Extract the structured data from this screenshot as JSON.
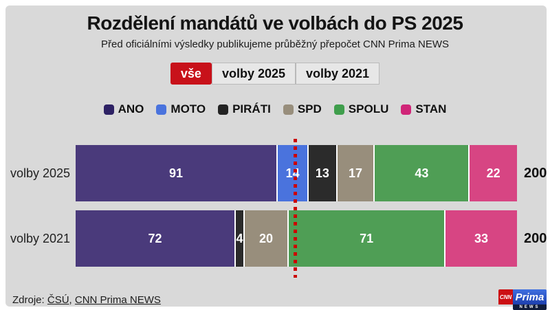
{
  "header": {
    "title": "Rozdělení mandátů ve volbách do PS 2025",
    "subtitle": "Před oficiálními výsledky publikujeme průběžný přepočet CNN Prima NEWS"
  },
  "tabs": {
    "items": [
      {
        "label": "vše",
        "active": true
      },
      {
        "label": "volby 2025",
        "active": false
      },
      {
        "label": "volby 2021",
        "active": false
      }
    ]
  },
  "legend": {
    "items": [
      {
        "label": "ANO",
        "color": "#2d2164"
      },
      {
        "label": "MOTO",
        "color": "#4a73dd"
      },
      {
        "label": "PIRÁTI",
        "color": "#232323"
      },
      {
        "label": "SPD",
        "color": "#988e7c"
      },
      {
        "label": "SPOLU",
        "color": "#3f9e4c"
      },
      {
        "label": "STAN",
        "color": "#d02578"
      }
    ]
  },
  "chart_data": {
    "type": "bar",
    "orientation": "horizontal",
    "stacked": true,
    "categories": [
      "volby 2025",
      "volby 2021"
    ],
    "series": [
      {
        "name": "ANO",
        "color": "#4a3a7b",
        "values": [
          91,
          72
        ]
      },
      {
        "name": "MOTO",
        "color": "#4a73dd",
        "values": [
          14,
          0
        ]
      },
      {
        "name": "PIRÁTI",
        "color": "#2b2b2b",
        "values": [
          13,
          4
        ]
      },
      {
        "name": "SPD",
        "color": "#988e7c",
        "values": [
          17,
          20
        ]
      },
      {
        "name": "SPOLU",
        "color": "#4f9e55",
        "values": [
          43,
          71
        ]
      },
      {
        "name": "STAN",
        "color": "#d74583",
        "values": [
          22,
          33
        ]
      }
    ],
    "totals": [
      200,
      200
    ],
    "xlim": [
      0,
      200
    ],
    "majority_line": 100,
    "majority_line_color": "#cc0000",
    "value_labels": true,
    "legend_position": "top",
    "grid": false
  },
  "footer": {
    "label": "Zdroje:",
    "source1": "ČSÚ",
    "separator": ", ",
    "source2": "CNN Prima NEWS"
  },
  "logo": {
    "cnn": "CNN",
    "prima": "Prima",
    "news": "NEWS"
  },
  "colors": {
    "background": "#d9d9d9",
    "accent_red": "#c8111a",
    "majority_line": "#cc0000"
  }
}
